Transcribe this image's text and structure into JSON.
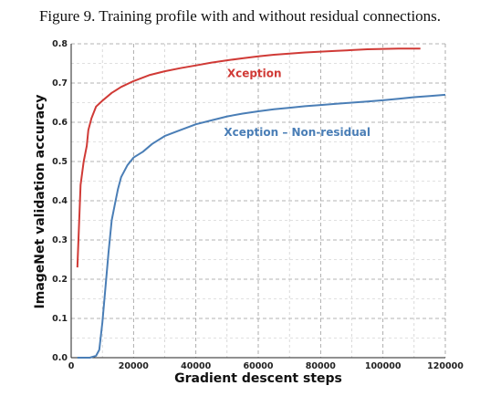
{
  "caption": "Figure 9. Training profile with and without residual connections.",
  "chart_data": {
    "type": "line",
    "xlabel": "Gradient descent steps",
    "ylabel": "ImageNet validation accuracy",
    "xlim": [
      0,
      120000
    ],
    "ylim": [
      0.0,
      0.8
    ],
    "x_ticks": [
      0,
      20000,
      40000,
      60000,
      80000,
      100000,
      120000
    ],
    "x_tick_labels": [
      "0",
      "20000",
      "40000",
      "60000",
      "80000",
      "100000",
      "120000"
    ],
    "y_ticks": [
      0.0,
      0.1,
      0.2,
      0.3,
      0.4,
      0.5,
      0.6,
      0.7,
      0.8
    ],
    "y_tick_labels": [
      "0.0",
      "0.1",
      "0.2",
      "0.3",
      "0.4",
      "0.5",
      "0.6",
      "0.7",
      "0.8"
    ],
    "grid": true,
    "series": [
      {
        "name": "Xception",
        "color": "#d03a36",
        "points": [
          [
            2000,
            0.23
          ],
          [
            3000,
            0.44
          ],
          [
            4000,
            0.5
          ],
          [
            5000,
            0.54
          ],
          [
            5500,
            0.58
          ],
          [
            6500,
            0.61
          ],
          [
            8000,
            0.64
          ],
          [
            10000,
            0.655
          ],
          [
            13000,
            0.675
          ],
          [
            16000,
            0.69
          ],
          [
            20000,
            0.705
          ],
          [
            25000,
            0.72
          ],
          [
            30000,
            0.73
          ],
          [
            35000,
            0.738
          ],
          [
            40000,
            0.745
          ],
          [
            45000,
            0.752
          ],
          [
            50000,
            0.758
          ],
          [
            55000,
            0.763
          ],
          [
            60000,
            0.768
          ],
          [
            65000,
            0.772
          ],
          [
            70000,
            0.775
          ],
          [
            75000,
            0.778
          ],
          [
            80000,
            0.78
          ],
          [
            85000,
            0.782
          ],
          [
            90000,
            0.784
          ],
          [
            95000,
            0.786
          ],
          [
            100000,
            0.787
          ],
          [
            105000,
            0.788
          ],
          [
            112000,
            0.788
          ]
        ]
      },
      {
        "name": "Xception – Non-residual",
        "color": "#4a7eb6",
        "points": [
          [
            2000,
            0.0
          ],
          [
            6000,
            0.0
          ],
          [
            8000,
            0.005
          ],
          [
            9000,
            0.02
          ],
          [
            10000,
            0.09
          ],
          [
            11000,
            0.18
          ],
          [
            12000,
            0.27
          ],
          [
            13000,
            0.35
          ],
          [
            14000,
            0.39
          ],
          [
            15000,
            0.43
          ],
          [
            16000,
            0.46
          ],
          [
            18000,
            0.49
          ],
          [
            20000,
            0.51
          ],
          [
            23000,
            0.525
          ],
          [
            26000,
            0.545
          ],
          [
            30000,
            0.565
          ],
          [
            35000,
            0.58
          ],
          [
            40000,
            0.595
          ],
          [
            45000,
            0.605
          ],
          [
            50000,
            0.615
          ],
          [
            55000,
            0.622
          ],
          [
            60000,
            0.628
          ],
          [
            65000,
            0.633
          ],
          [
            70000,
            0.637
          ],
          [
            75000,
            0.641
          ],
          [
            80000,
            0.644
          ],
          [
            85000,
            0.647
          ],
          [
            90000,
            0.65
          ],
          [
            95000,
            0.653
          ],
          [
            100000,
            0.656
          ],
          [
            105000,
            0.66
          ],
          [
            110000,
            0.664
          ],
          [
            115000,
            0.667
          ],
          [
            120000,
            0.67
          ]
        ]
      }
    ],
    "annotations": [
      {
        "text": "Xception",
        "x": 50000,
        "y": 0.715,
        "color": "#d03a36"
      },
      {
        "text": "Xception – Non-residual",
        "x": 49000,
        "y": 0.565,
        "color": "#4a7eb6"
      }
    ]
  }
}
